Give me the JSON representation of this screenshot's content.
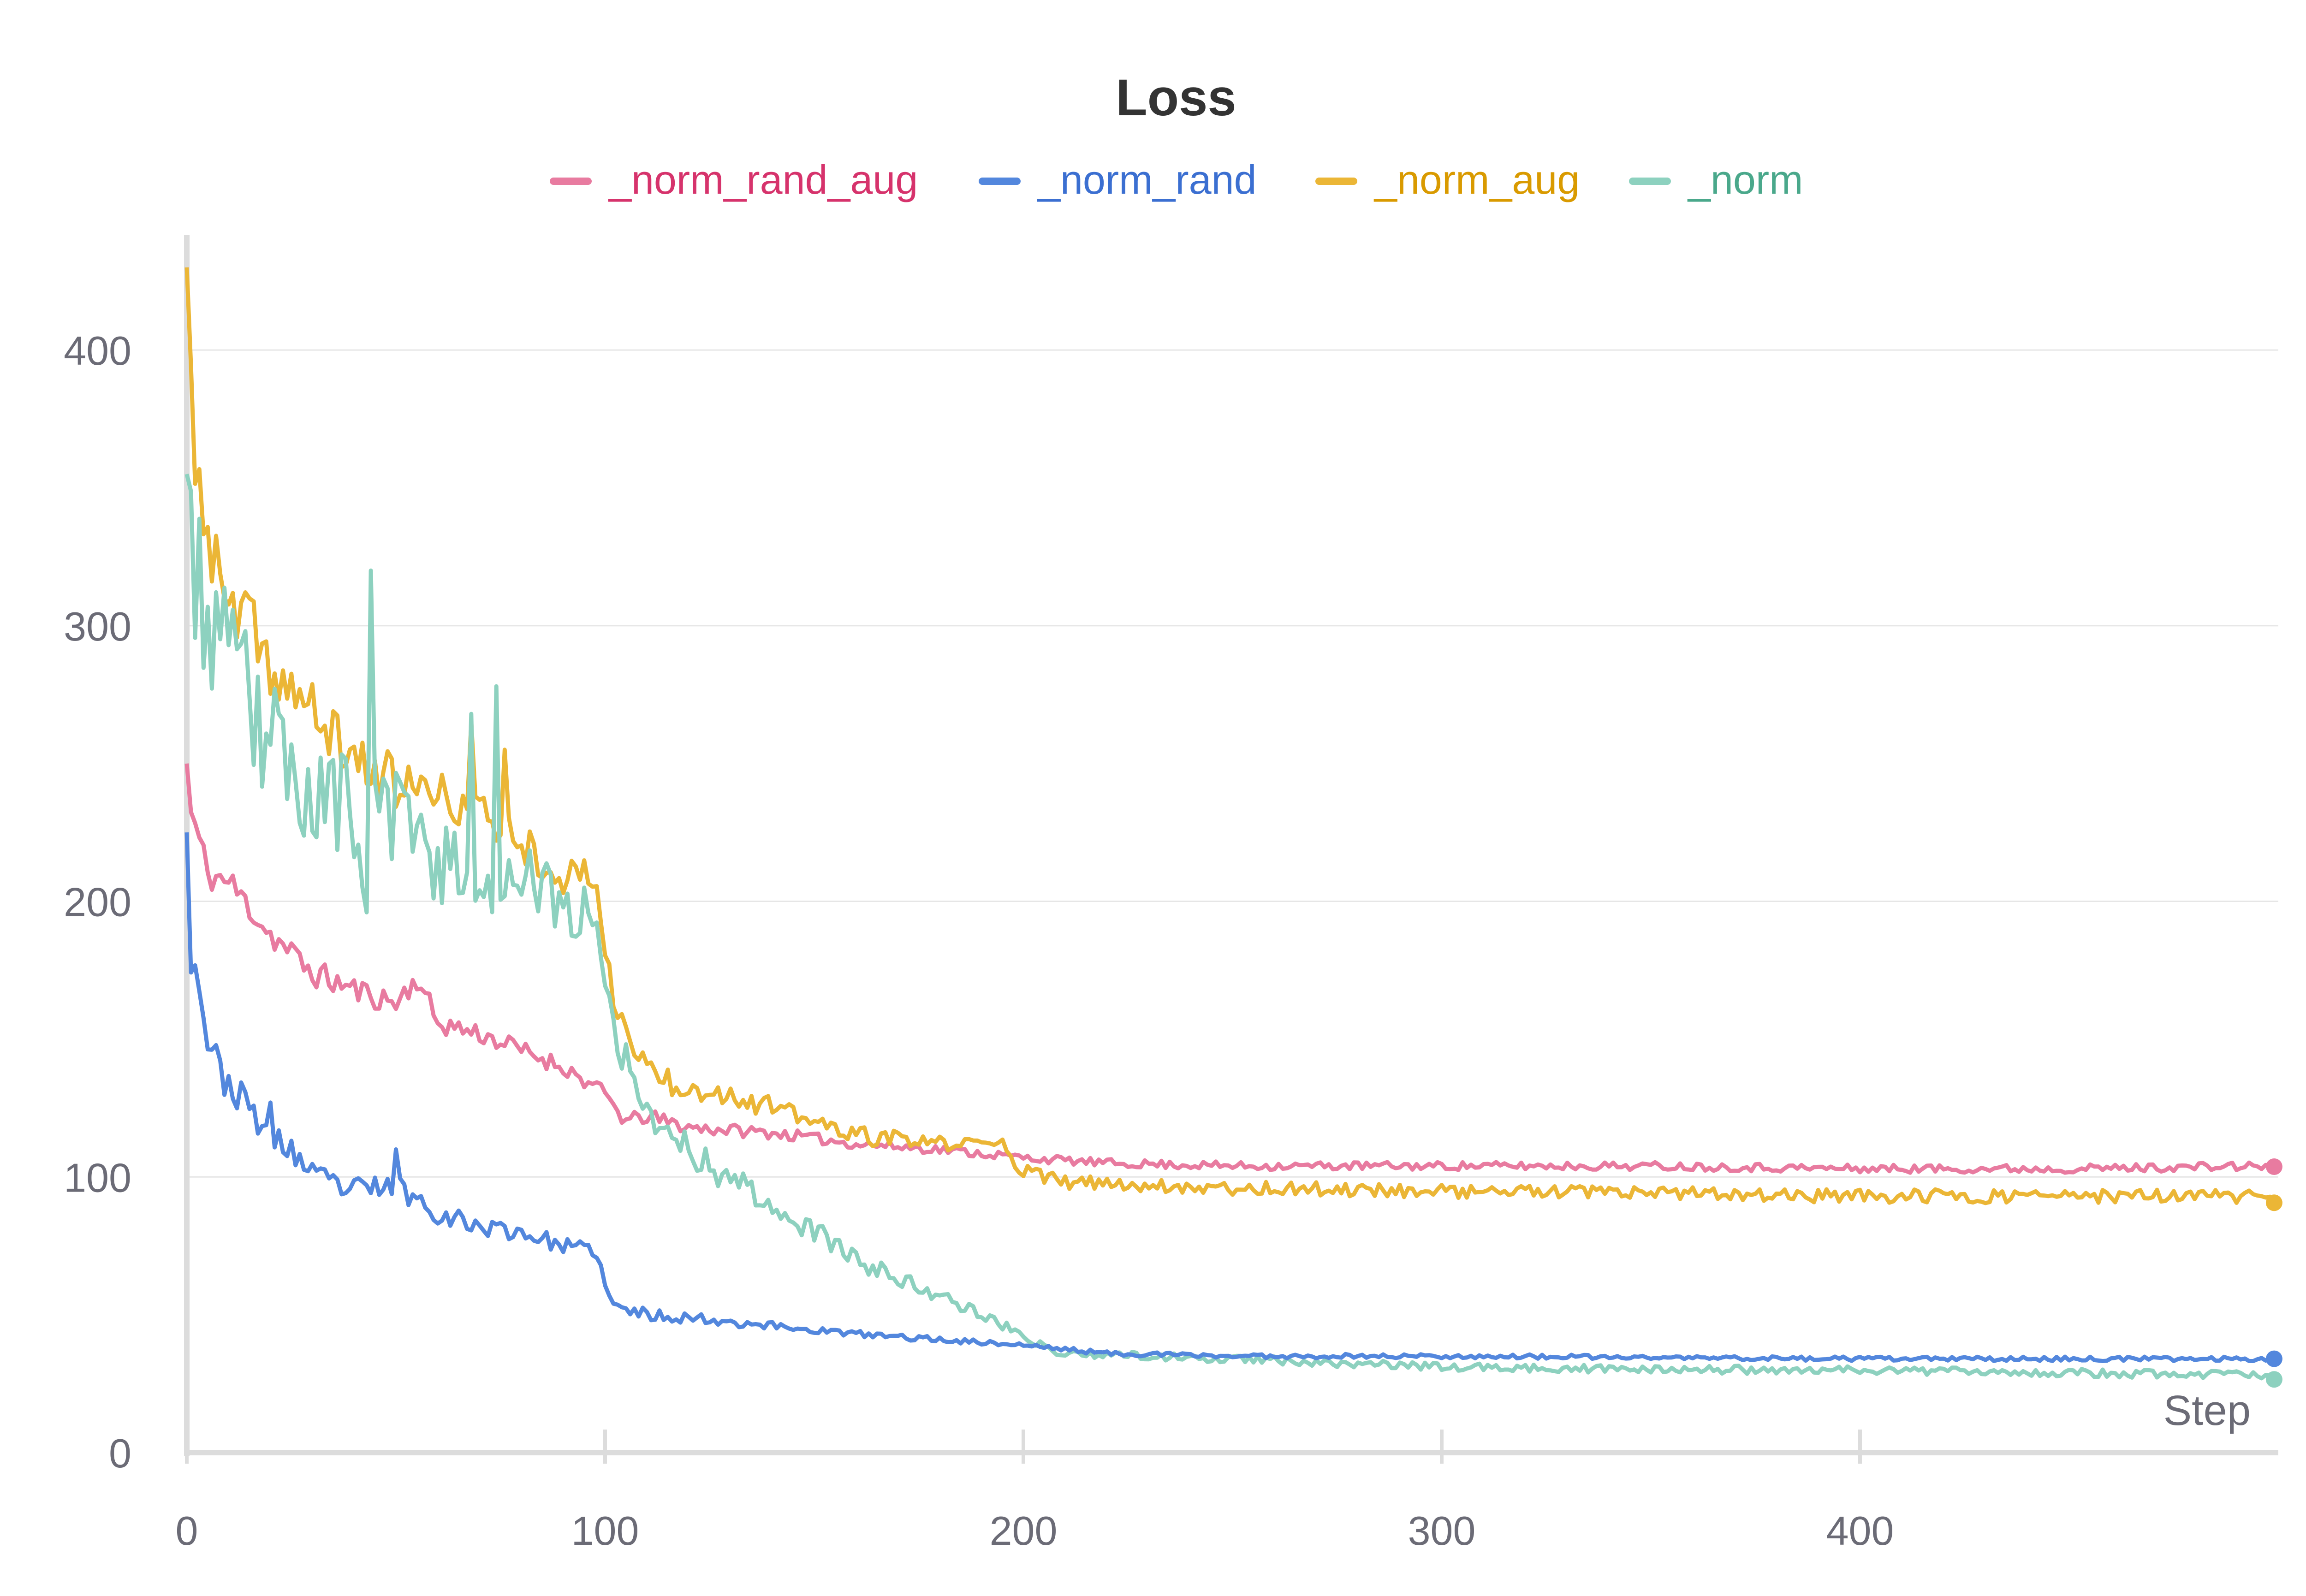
{
  "chart_data": {
    "type": "line",
    "title": "Loss",
    "xlabel": "Step",
    "ylabel": "",
    "xlim": [
      0,
      500
    ],
    "ylim": [
      0,
      440
    ],
    "x_ticks": [
      0,
      100,
      200,
      300,
      400
    ],
    "y_ticks": [
      0,
      100,
      200,
      300,
      400
    ],
    "grid": "horizontal",
    "legend_position": "top-center",
    "series": [
      {
        "name": "_norm_rand_aug",
        "color": "#e87ba0",
        "text_color": "#d6336c",
        "anchors": [
          [
            0,
            250
          ],
          [
            1,
            232
          ],
          [
            3,
            222
          ],
          [
            5,
            210
          ],
          [
            10,
            207
          ],
          [
            15,
            198
          ],
          [
            20,
            188
          ],
          [
            30,
            174
          ],
          [
            40,
            168
          ],
          [
            50,
            163
          ],
          [
            55,
            172
          ],
          [
            60,
            156
          ],
          [
            70,
            152
          ],
          [
            80,
            146
          ],
          [
            90,
            140
          ],
          [
            95,
            135
          ],
          [
            100,
            130
          ],
          [
            105,
            120
          ],
          [
            110,
            122
          ],
          [
            120,
            118
          ],
          [
            140,
            116
          ],
          [
            160,
            112
          ],
          [
            180,
            110
          ],
          [
            200,
            107
          ],
          [
            220,
            105
          ],
          [
            250,
            104
          ],
          [
            300,
            104
          ],
          [
            350,
            104
          ],
          [
            400,
            103
          ],
          [
            450,
            103
          ],
          [
            499,
            104
          ]
        ],
        "noise": [
          1.5,
          5
        ],
        "seed": 11
      },
      {
        "name": "_norm_rand",
        "color": "#5387dd",
        "text_color": "#3b6fd1",
        "anchors": [
          [
            0,
            225
          ],
          [
            1,
            180
          ],
          [
            3,
            170
          ],
          [
            5,
            150
          ],
          [
            8,
            138
          ],
          [
            12,
            130
          ],
          [
            15,
            125
          ],
          [
            20,
            115
          ],
          [
            25,
            110
          ],
          [
            30,
            100
          ],
          [
            40,
            95
          ],
          [
            50,
            97
          ],
          [
            60,
            87
          ],
          [
            70,
            82
          ],
          [
            80,
            80
          ],
          [
            90,
            75
          ],
          [
            98,
            73
          ],
          [
            100,
            60
          ],
          [
            102,
            53
          ],
          [
            110,
            50
          ],
          [
            120,
            49
          ],
          [
            140,
            46
          ],
          [
            160,
            43
          ],
          [
            180,
            41
          ],
          [
            200,
            39
          ],
          [
            220,
            36
          ],
          [
            250,
            35
          ],
          [
            300,
            35
          ],
          [
            400,
            34
          ],
          [
            499,
            34
          ]
        ],
        "noise": [
          0.8,
          6
        ],
        "seed": 23
      },
      {
        "name": "_norm_aug",
        "color": "#ebb636",
        "text_color": "#d99a00",
        "anchors": [
          [
            0,
            430
          ],
          [
            1,
            380
          ],
          [
            3,
            350
          ],
          [
            6,
            325
          ],
          [
            10,
            305
          ],
          [
            15,
            300
          ],
          [
            20,
            285
          ],
          [
            30,
            268
          ],
          [
            40,
            252
          ],
          [
            50,
            243
          ],
          [
            60,
            238
          ],
          [
            70,
            232
          ],
          [
            80,
            222
          ],
          [
            90,
            208
          ],
          [
            98,
            210
          ],
          [
            100,
            180
          ],
          [
            103,
            160
          ],
          [
            107,
            145
          ],
          [
            115,
            135
          ],
          [
            130,
            130
          ],
          [
            140,
            125
          ],
          [
            150,
            120
          ],
          [
            160,
            115
          ],
          [
            180,
            112
          ],
          [
            195,
            112
          ],
          [
            200,
            102
          ],
          [
            210,
            98
          ],
          [
            250,
            96
          ],
          [
            300,
            95
          ],
          [
            350,
            94
          ],
          [
            400,
            93
          ],
          [
            450,
            93
          ],
          [
            499,
            93
          ]
        ],
        "noise": [
          2.5,
          12
        ],
        "seed": 37
      },
      {
        "name": "_norm",
        "color": "#8dd1bf",
        "text_color": "#4aa88b",
        "anchors": [
          [
            0,
            355
          ],
          [
            1,
            330
          ],
          [
            3,
            312
          ],
          [
            5,
            305
          ],
          [
            10,
            285
          ],
          [
            15,
            270
          ],
          [
            20,
            257
          ],
          [
            30,
            240
          ],
          [
            40,
            232
          ],
          [
            50,
            230
          ],
          [
            60,
            215
          ],
          [
            70,
            210
          ],
          [
            80,
            208
          ],
          [
            90,
            198
          ],
          [
            98,
            195
          ],
          [
            100,
            175
          ],
          [
            105,
            140
          ],
          [
            110,
            125
          ],
          [
            120,
            110
          ],
          [
            130,
            100
          ],
          [
            140,
            90
          ],
          [
            150,
            80
          ],
          [
            160,
            70
          ],
          [
            170,
            63
          ],
          [
            180,
            57
          ],
          [
            190,
            50
          ],
          [
            200,
            43
          ],
          [
            205,
            38
          ],
          [
            210,
            36
          ],
          [
            250,
            34
          ],
          [
            300,
            31
          ],
          [
            350,
            30
          ],
          [
            400,
            30
          ],
          [
            450,
            29
          ],
          [
            499,
            28
          ]
        ],
        "noise": [
          1.5,
          28
        ],
        "seed": 53
      }
    ],
    "spikes": [
      {
        "series": 3,
        "x": 44,
        "y": 320
      },
      {
        "series": 3,
        "x": 74,
        "y": 278
      },
      {
        "series": 3,
        "x": 68,
        "y": 268
      },
      {
        "series": 2,
        "x": 76,
        "y": 255
      },
      {
        "series": 2,
        "x": 68,
        "y": 265
      },
      {
        "series": 3,
        "x": 43,
        "y": 196
      },
      {
        "series": 3,
        "x": 42,
        "y": 205
      },
      {
        "series": 1,
        "x": 50,
        "y": 110
      },
      {
        "series": 1,
        "x": 20,
        "y": 127
      }
    ]
  }
}
